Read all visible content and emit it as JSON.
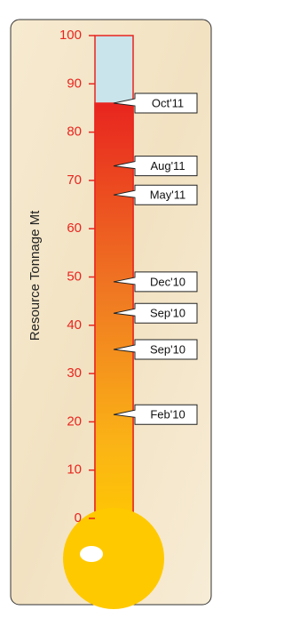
{
  "chart_data": {
    "type": "thermometer",
    "y_label": "Resource Tonnage Mt",
    "categories": [
      "Oct'11",
      "Aug'11",
      "May'11",
      "Dec'10",
      "Sep'10",
      "Sep'10",
      "Feb'10"
    ],
    "values": [
      86,
      73,
      67,
      49,
      42.5,
      35,
      21.5
    ],
    "ylim": [
      0,
      100
    ],
    "yticks": [
      0,
      10,
      20,
      30,
      40,
      50,
      60,
      70,
      80,
      90,
      100
    ],
    "color": "#e8251f"
  }
}
